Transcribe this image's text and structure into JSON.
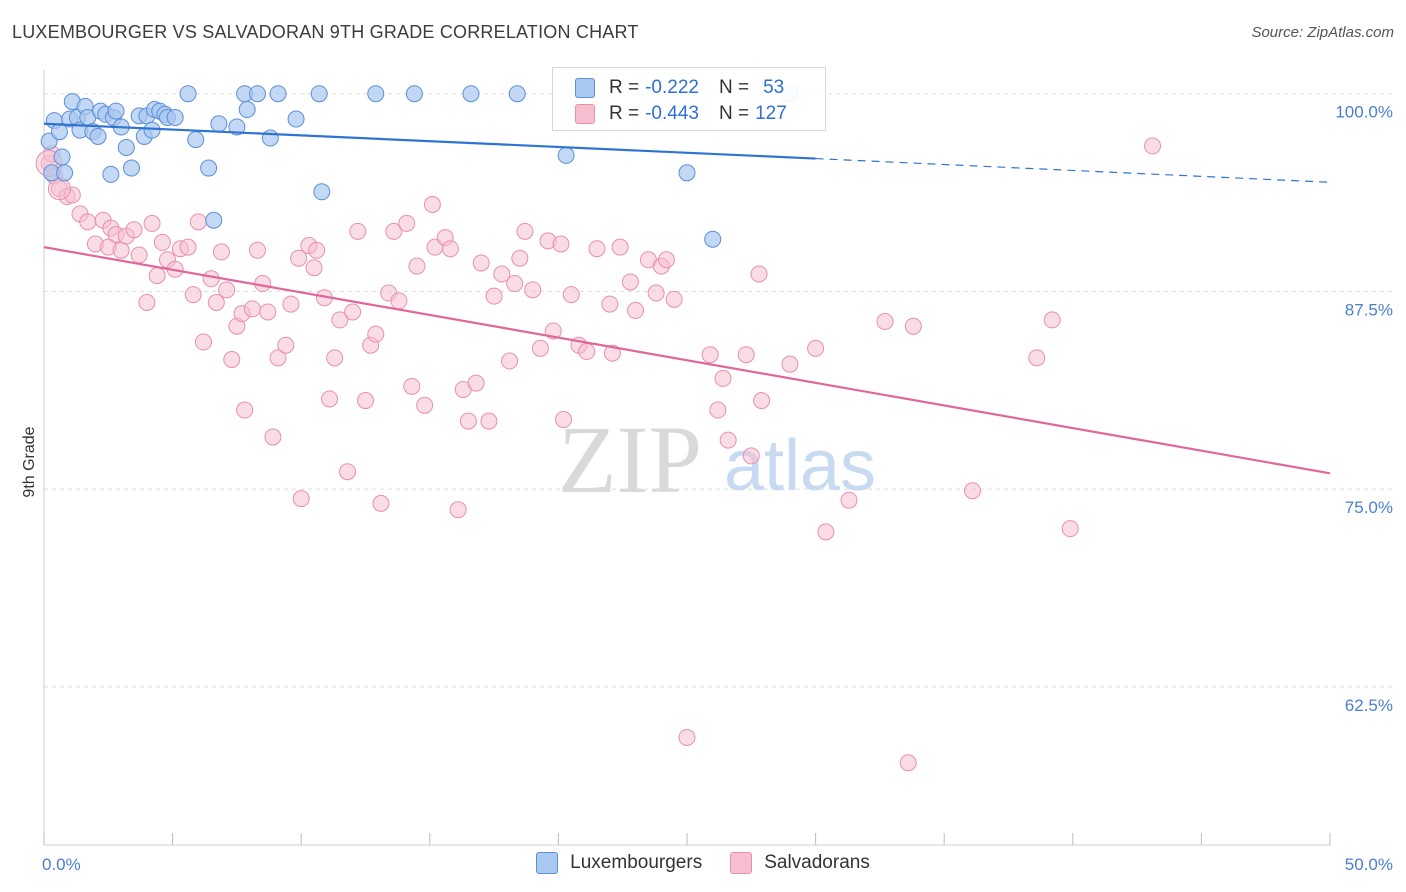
{
  "header": {
    "title": "LUXEMBOURGER VS SALVADORAN 9TH GRADE CORRELATION CHART",
    "source": "Source: ZipAtlas.com"
  },
  "legend": {
    "rows": [
      {
        "r_label": "R =",
        "r_value": "-0.222",
        "n_label": "N =",
        "n_value": "53"
      },
      {
        "r_label": "R =",
        "r_value": "-0.443",
        "n_label": "N =",
        "n_value": "127"
      }
    ]
  },
  "series_labels": [
    "Luxembourgers",
    "Salvadorans"
  ],
  "colors": {
    "lux_fill": "#aac8f0",
    "lux_stroke": "#5b8fd8",
    "lux_line": "#2f74d0",
    "sal_fill": "#f6bfd0",
    "sal_stroke": "#e98fae",
    "sal_line": "#e0679a",
    "tick_text": "#4a7fd0",
    "grid": "#dcdcdc"
  },
  "watermark": {
    "zip": "ZIP",
    "atlas": "atlas"
  },
  "chart_data": {
    "type": "scatter",
    "title": "LUXEMBOURGER VS SALVADORAN 9TH GRADE CORRELATION CHART",
    "xlabel": "",
    "ylabel": "9th Grade",
    "xlim": [
      0,
      50
    ],
    "ylim": [
      52.5,
      101.5
    ],
    "x_tick_labels": [
      {
        "value": 0,
        "label": "0.0%"
      },
      {
        "value": 50,
        "label": "50.0%"
      }
    ],
    "y_tick_labels": [
      {
        "value": 100,
        "label": "100.0%"
      },
      {
        "value": 87.5,
        "label": "87.5%"
      },
      {
        "value": 75,
        "label": "75.0%"
      },
      {
        "value": 62.5,
        "label": "62.5%"
      }
    ],
    "series": [
      {
        "name": "Luxembourgers",
        "r": -0.222,
        "n": 53,
        "trend": {
          "x0": 0,
          "y0": 98.1,
          "x1": 30,
          "y1": 95.9,
          "dash_x1": 50,
          "dash_y1": 94.4
        },
        "points": [
          [
            0.2,
            97.0
          ],
          [
            0.3,
            95.0
          ],
          [
            0.4,
            98.3
          ],
          [
            0.6,
            97.6
          ],
          [
            0.7,
            96.0
          ],
          [
            0.8,
            95.0
          ],
          [
            1.0,
            98.4
          ],
          [
            1.1,
            99.5
          ],
          [
            1.3,
            98.5
          ],
          [
            1.4,
            97.7
          ],
          [
            1.6,
            99.2
          ],
          [
            1.7,
            98.5
          ],
          [
            1.9,
            97.6
          ],
          [
            2.1,
            97.3
          ],
          [
            2.2,
            98.9
          ],
          [
            2.4,
            98.7
          ],
          [
            2.6,
            94.9
          ],
          [
            2.7,
            98.5
          ],
          [
            2.8,
            98.9
          ],
          [
            3.0,
            97.9
          ],
          [
            3.2,
            96.6
          ],
          [
            3.4,
            95.3
          ],
          [
            3.7,
            98.6
          ],
          [
            3.9,
            97.3
          ],
          [
            4.0,
            98.6
          ],
          [
            4.2,
            97.7
          ],
          [
            4.3,
            99.0
          ],
          [
            4.5,
            98.9
          ],
          [
            4.7,
            98.7
          ],
          [
            4.8,
            98.5
          ],
          [
            5.1,
            98.5
          ],
          [
            5.6,
            100.0
          ],
          [
            5.9,
            97.1
          ],
          [
            6.4,
            95.3
          ],
          [
            6.6,
            92.0
          ],
          [
            6.8,
            98.1
          ],
          [
            7.5,
            97.9
          ],
          [
            7.9,
            99.0
          ],
          [
            7.8,
            100.0
          ],
          [
            8.3,
            100.0
          ],
          [
            8.8,
            97.2
          ],
          [
            9.1,
            100.0
          ],
          [
            9.8,
            98.4
          ],
          [
            10.8,
            93.8
          ],
          [
            10.7,
            100.0
          ],
          [
            12.9,
            100.0
          ],
          [
            14.4,
            100.0
          ],
          [
            16.6,
            100.0
          ],
          [
            18.4,
            100.0
          ],
          [
            20.3,
            96.1
          ],
          [
            26.0,
            90.8
          ],
          [
            25.0,
            95.0
          ],
          [
            29.0,
            100.0
          ]
        ]
      },
      {
        "name": "Salvadorans",
        "r": -0.443,
        "n": 127,
        "trend": {
          "x0": 0,
          "y0": 90.3,
          "x1": 50,
          "y1": 76.0
        },
        "points": [
          [
            0.2,
            95.6
          ],
          [
            0.3,
            96.2
          ],
          [
            0.4,
            94.8
          ],
          [
            0.6,
            94.0
          ],
          [
            0.9,
            93.5
          ],
          [
            1.1,
            93.6
          ],
          [
            1.4,
            92.4
          ],
          [
            1.7,
            91.9
          ],
          [
            2.0,
            90.5
          ],
          [
            2.3,
            92.0
          ],
          [
            2.5,
            90.3
          ],
          [
            2.6,
            91.5
          ],
          [
            2.8,
            91.1
          ],
          [
            3.0,
            90.1
          ],
          [
            3.2,
            91.0
          ],
          [
            3.5,
            91.4
          ],
          [
            3.7,
            89.8
          ],
          [
            4.0,
            86.8
          ],
          [
            4.2,
            91.8
          ],
          [
            4.4,
            88.5
          ],
          [
            4.6,
            90.6
          ],
          [
            4.8,
            89.5
          ],
          [
            5.1,
            88.9
          ],
          [
            5.3,
            90.2
          ],
          [
            5.6,
            90.3
          ],
          [
            5.8,
            87.3
          ],
          [
            6.0,
            91.9
          ],
          [
            6.2,
            84.3
          ],
          [
            6.5,
            88.3
          ],
          [
            6.7,
            86.8
          ],
          [
            6.9,
            90.0
          ],
          [
            7.1,
            87.6
          ],
          [
            7.3,
            83.2
          ],
          [
            7.5,
            85.3
          ],
          [
            7.7,
            86.1
          ],
          [
            7.8,
            80.0
          ],
          [
            8.1,
            86.4
          ],
          [
            8.3,
            90.1
          ],
          [
            8.5,
            88.0
          ],
          [
            8.7,
            86.2
          ],
          [
            8.9,
            78.3
          ],
          [
            9.1,
            83.3
          ],
          [
            9.4,
            84.1
          ],
          [
            9.6,
            86.7
          ],
          [
            9.9,
            89.6
          ],
          [
            10.0,
            74.4
          ],
          [
            10.3,
            90.4
          ],
          [
            10.5,
            89.0
          ],
          [
            10.6,
            90.1
          ],
          [
            10.9,
            87.1
          ],
          [
            11.1,
            80.7
          ],
          [
            11.3,
            83.3
          ],
          [
            11.5,
            85.7
          ],
          [
            11.8,
            76.1
          ],
          [
            12.0,
            86.2
          ],
          [
            12.2,
            91.3
          ],
          [
            12.5,
            80.6
          ],
          [
            12.7,
            84.1
          ],
          [
            12.9,
            84.8
          ],
          [
            13.1,
            74.1
          ],
          [
            13.4,
            87.4
          ],
          [
            13.6,
            91.3
          ],
          [
            13.8,
            86.9
          ],
          [
            14.1,
            91.8
          ],
          [
            14.3,
            81.5
          ],
          [
            14.5,
            89.1
          ],
          [
            14.8,
            80.3
          ],
          [
            15.1,
            93.0
          ],
          [
            15.2,
            90.3
          ],
          [
            15.6,
            90.9
          ],
          [
            15.8,
            90.2
          ],
          [
            16.1,
            73.7
          ],
          [
            16.3,
            81.3
          ],
          [
            16.5,
            79.3
          ],
          [
            16.8,
            81.7
          ],
          [
            17.0,
            89.3
          ],
          [
            17.3,
            79.3
          ],
          [
            17.5,
            87.2
          ],
          [
            17.8,
            88.6
          ],
          [
            18.1,
            83.1
          ],
          [
            18.3,
            88.0
          ],
          [
            18.5,
            89.6
          ],
          [
            18.7,
            91.3
          ],
          [
            19.0,
            87.6
          ],
          [
            19.3,
            83.9
          ],
          [
            19.6,
            90.7
          ],
          [
            19.8,
            85.0
          ],
          [
            20.1,
            90.5
          ],
          [
            20.2,
            79.4
          ],
          [
            20.5,
            87.3
          ],
          [
            20.8,
            84.1
          ],
          [
            21.1,
            83.7
          ],
          [
            21.5,
            90.2
          ],
          [
            22.0,
            86.7
          ],
          [
            22.1,
            83.6
          ],
          [
            22.4,
            90.3
          ],
          [
            22.8,
            88.1
          ],
          [
            23.0,
            86.3
          ],
          [
            23.5,
            89.5
          ],
          [
            23.8,
            87.4
          ],
          [
            24.0,
            89.1
          ],
          [
            24.2,
            89.5
          ],
          [
            24.5,
            87.0
          ],
          [
            25.0,
            59.3
          ],
          [
            25.9,
            83.5
          ],
          [
            26.2,
            80.0
          ],
          [
            26.4,
            82.0
          ],
          [
            26.6,
            78.1
          ],
          [
            27.3,
            83.5
          ],
          [
            27.5,
            77.1
          ],
          [
            27.8,
            88.6
          ],
          [
            27.9,
            80.6
          ],
          [
            29.0,
            82.9
          ],
          [
            30.0,
            83.9
          ],
          [
            30.4,
            72.3
          ],
          [
            31.3,
            74.3
          ],
          [
            32.7,
            85.6
          ],
          [
            33.6,
            57.7
          ],
          [
            33.8,
            85.3
          ],
          [
            36.1,
            74.9
          ],
          [
            38.6,
            83.3
          ],
          [
            39.2,
            85.7
          ],
          [
            39.9,
            72.5
          ],
          [
            43.1,
            96.7
          ]
        ]
      }
    ]
  }
}
